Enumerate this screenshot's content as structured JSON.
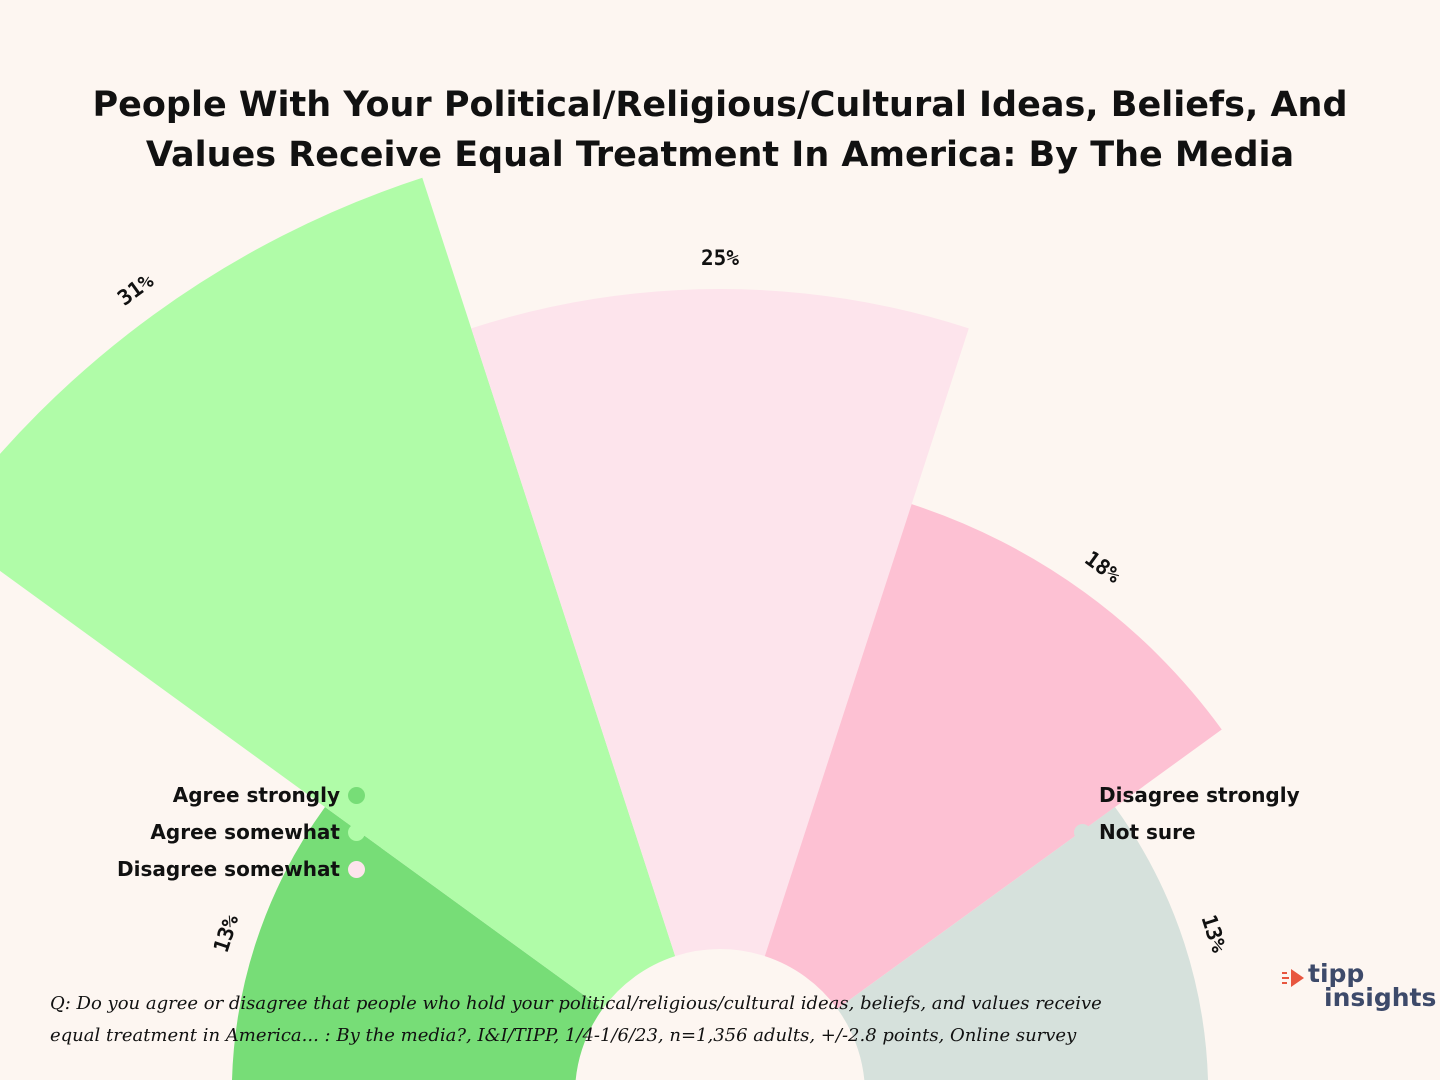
{
  "title_lines": [
    "People With Your Political/Religious/Cultural Ideas, Beliefs, And",
    "Values Receive Equal Treatment In America: By The Media"
  ],
  "chart_data": {
    "type": "polar-bar",
    "title": "People With Your Political/Religious/Cultural Ideas, Beliefs, And Values Receive Equal Treatment In America: By The Media",
    "unit": "%",
    "categories": [
      "Agree strongly",
      "Agree somewhat",
      "Disagree somewhat",
      "Disagree strongly",
      "Not sure"
    ],
    "values": [
      13,
      31,
      25,
      18,
      13
    ],
    "labels": [
      "13%",
      "31%",
      "25%",
      "18%",
      "13%"
    ],
    "colors": [
      "#77dd77",
      "#b0fca8",
      "#fde4ec",
      "#fdc1d3",
      "#d6e1dc"
    ],
    "legend_placement": "split left and right"
  },
  "legend": {
    "left": [
      {
        "label": "Agree strongly",
        "color": "#77dd77"
      },
      {
        "label": "Agree somewhat",
        "color": "#b0fca8"
      },
      {
        "label": "Disagree somewhat",
        "color": "#fde4ec"
      }
    ],
    "right": [
      {
        "label": "Disagree strongly",
        "color": "#fdc1d3"
      },
      {
        "label": "Not sure",
        "color": "#d6e1dc"
      }
    ]
  },
  "footnote_lines": [
    "Q: Do you agree or disagree that people who hold your political/religious/cultural ideas, beliefs, and values receive",
    "equal treatment in America... : By the media?, I&I/TIPP, 1/4-1/6/23, n=1,356 adults, +/-2.8 points, Online survey"
  ],
  "brand": {
    "line1": "tipp",
    "line2": "insights",
    "accent_color": "#e8563f",
    "text_color": "#3d4a6a"
  }
}
